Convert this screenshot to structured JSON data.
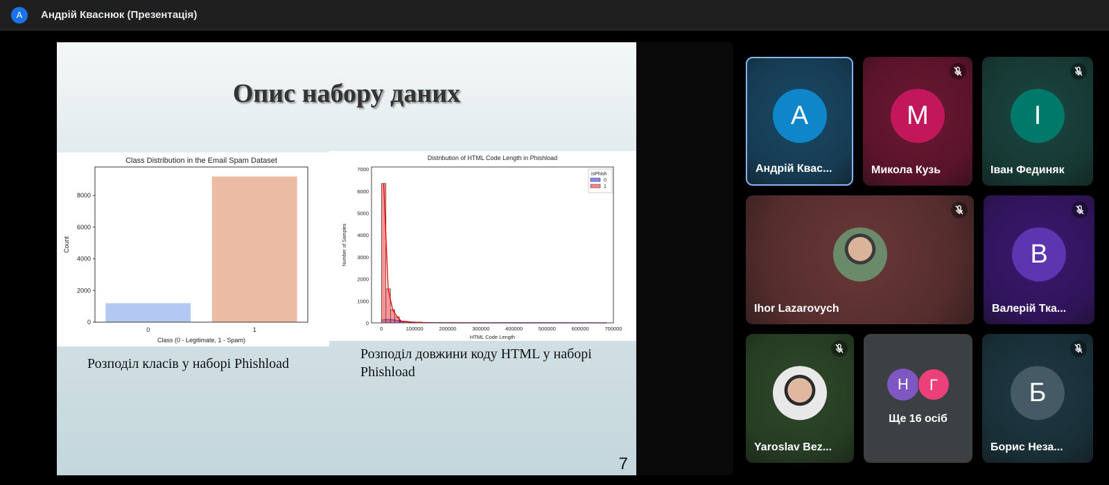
{
  "header": {
    "avatar_letter": "A",
    "title": "Андрій Кваснюк (Презентація)"
  },
  "slide": {
    "title": "Опис набору даних",
    "caption_left": "Розподіл класів у наборі Phishload",
    "caption_right": "Розподіл довжини коду HTML у наборі Phishload",
    "page_number": "7"
  },
  "chart_data": [
    {
      "type": "bar",
      "title": "Class Distribution in the Email Spam Dataset",
      "xlabel": "Class (0 - Legitimate, 1 - Spam)",
      "ylabel": "Count",
      "categories": [
        "0",
        "1"
      ],
      "values": [
        1200,
        9200
      ],
      "colors": [
        "#b3c8f2",
        "#ebbba3"
      ],
      "ylim": [
        0,
        9800
      ],
      "yticks": [
        "0",
        "2000",
        "4000",
        "6000",
        "8000"
      ]
    },
    {
      "type": "bar",
      "title": "Distribution of HTML Code Length in Phishload",
      "xlabel": "HTML Code Length",
      "ylabel": "Number of Samples",
      "xlim": [
        -30000,
        700000
      ],
      "ylim": [
        0,
        7100
      ],
      "xticks": [
        "0",
        "100000",
        "200000",
        "300000",
        "400000",
        "500000",
        "600000",
        "700000"
      ],
      "yticks": [
        "0",
        "1000",
        "2000",
        "3000",
        "4000",
        "5000",
        "6000",
        "7000"
      ],
      "legend": {
        "title": "isPhish",
        "position": "top-right"
      },
      "bin_width": 13500,
      "series": [
        {
          "name": "0",
          "color": "#5555ff",
          "values": [
            150,
            150,
            140,
            110,
            80,
            60,
            40,
            30,
            20,
            15,
            10,
            8,
            6,
            5
          ]
        },
        {
          "name": "1",
          "color": "#ff5050",
          "values": [
            6350,
            1550,
            600,
            280,
            60,
            70,
            30,
            20,
            30,
            10,
            5,
            5,
            3,
            2
          ]
        }
      ]
    }
  ],
  "tiles": [
    {
      "name": "Андрій Квас...",
      "letter": "A",
      "color": "#0e86c9",
      "bg": "#1b4a66",
      "muted": false
    },
    {
      "name": "Микола Кузь",
      "letter": "M",
      "color": "#c2185b",
      "bg": "#6e1834",
      "muted": true
    },
    {
      "name": "Іван Фединяк",
      "letter": "І",
      "color": "#00796b",
      "bg": "#1c4640",
      "muted": true
    },
    {
      "name": "Ihor Lazarovych",
      "bg": "#6a3838",
      "muted": true
    },
    {
      "name": "Валерій Тка...",
      "letter": "В",
      "color": "#5e35b1",
      "bg": "#3b1970",
      "muted": true
    },
    {
      "name": "Yaroslav Bez...",
      "bg": "#2f4a2b",
      "muted": true
    },
    {
      "name": "Ще 16 осіб",
      "letters": [
        "Н",
        "Г"
      ],
      "bg": "#3c4043"
    },
    {
      "name": "Борис Неза...",
      "letter": "Б",
      "color": "#455a64",
      "bg": "#1e3a44",
      "muted": true
    }
  ]
}
